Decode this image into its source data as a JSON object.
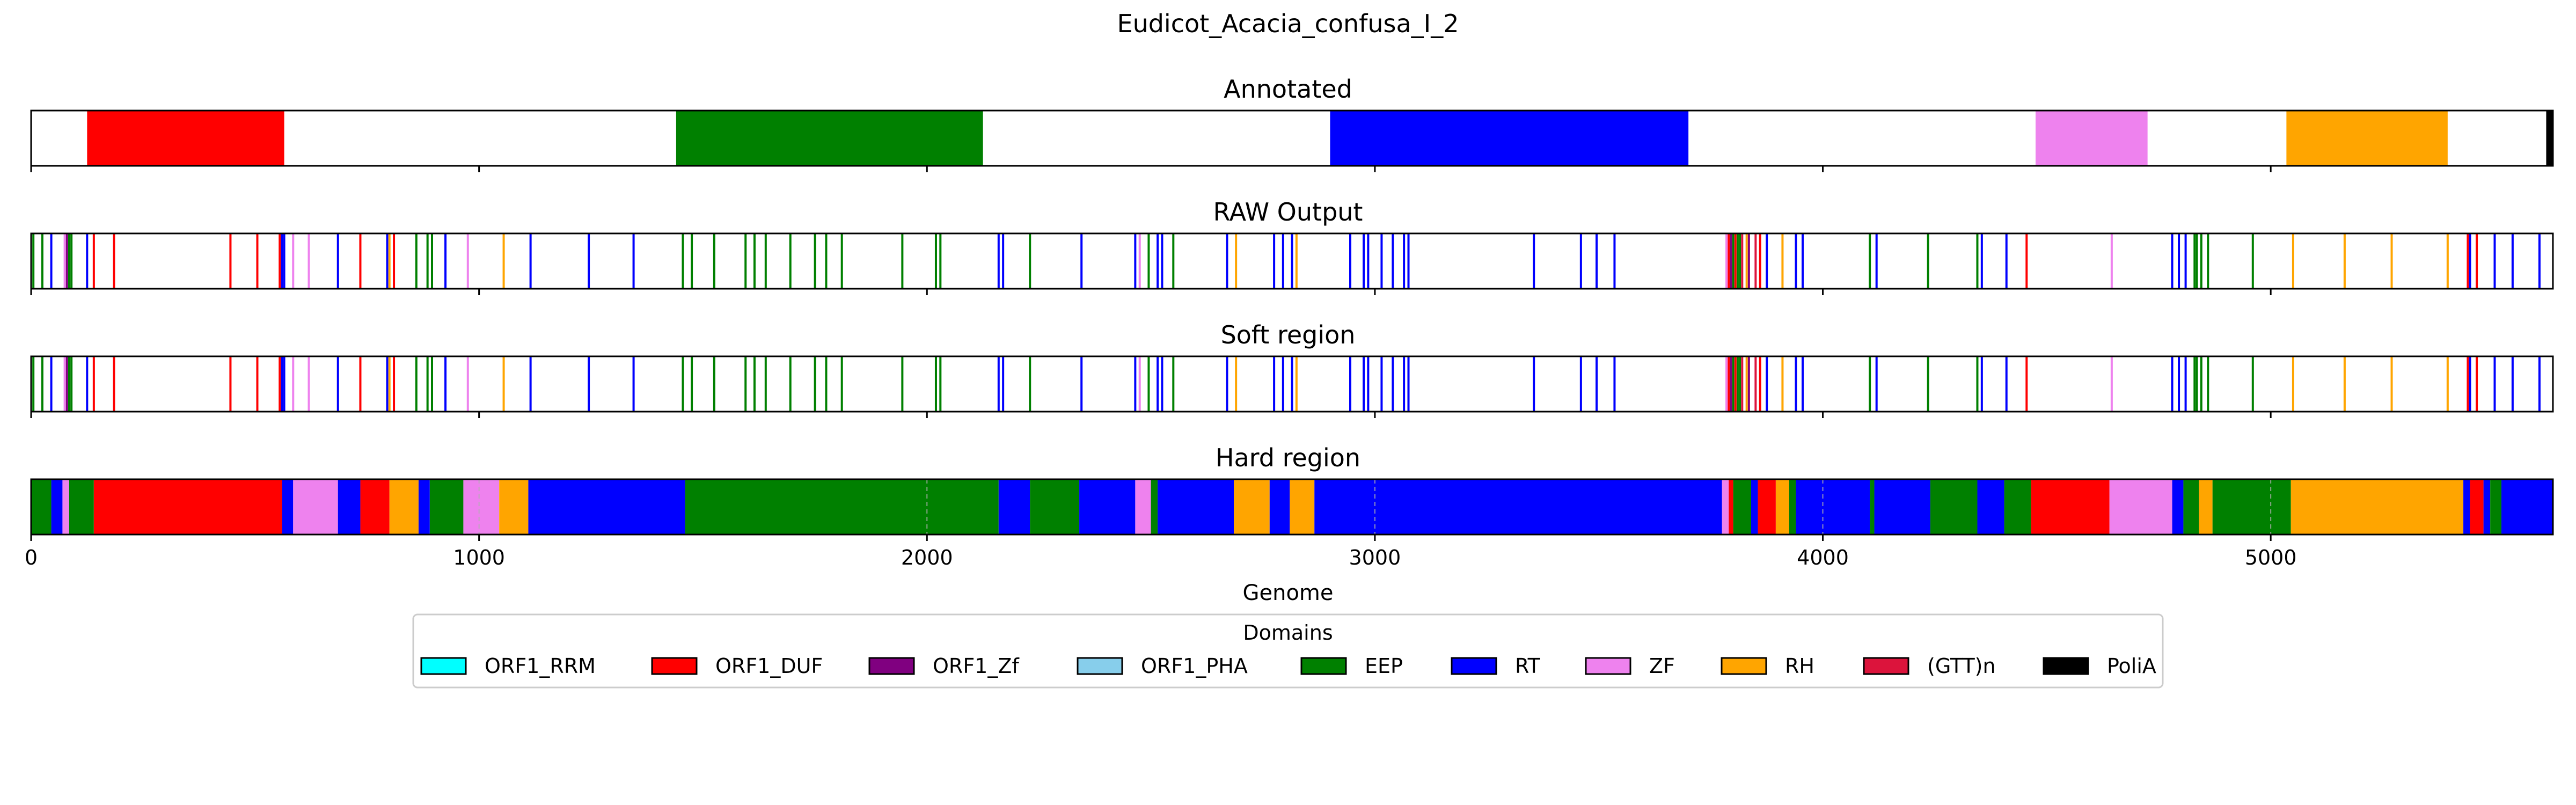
{
  "figure_title": "Eudicot_Acacia_confusa_I_2",
  "chart_data": {
    "type": "bar",
    "title": "Eudicot_Acacia_confusa_I_2",
    "xlabel": "Genome",
    "xlim": [
      0,
      5630
    ],
    "xticks": [
      0,
      1000,
      2000,
      3000,
      4000,
      5000
    ],
    "grid": "x dashed on Hard region panel",
    "legend": {
      "title": "Domains",
      "placement": "bottom-center",
      "entries": [
        {
          "name": "ORF1_RRM",
          "color": "#00ffff"
        },
        {
          "name": "ORF1_DUF",
          "color": "#ff0000"
        },
        {
          "name": "ORF1_Zf",
          "color": "#800080"
        },
        {
          "name": "ORF1_PHA",
          "color": "#87ceeb"
        },
        {
          "name": "EEP",
          "color": "#008000"
        },
        {
          "name": "RT",
          "color": "#0000ff"
        },
        {
          "name": "ZF",
          "color": "#ee82ee"
        },
        {
          "name": "RH",
          "color": "#ffa500"
        },
        {
          "name": "(GTT)n",
          "color": "#dc143c"
        },
        {
          "name": "PoliA",
          "color": "#000000"
        }
      ]
    },
    "panels": [
      {
        "title": "Annotated",
        "segments": [
          {
            "domain": "ORF1_DUF",
            "start": 125,
            "end": 565
          },
          {
            "domain": "EEP",
            "start": 1440,
            "end": 2125
          },
          {
            "domain": "RT",
            "start": 2900,
            "end": 3700
          },
          {
            "domain": "ZF",
            "start": 4475,
            "end": 4725
          },
          {
            "domain": "RH",
            "start": 5035,
            "end": 5395
          },
          {
            "domain": "PoliA",
            "start": 5615,
            "end": 5630
          }
        ]
      },
      {
        "title": "RAW Output",
        "marks": [
          {
            "domain": "EEP",
            "positions": [
              5,
              25,
              85,
              90,
              860,
              885,
              895,
              1455,
              1475,
              1525,
              1595,
              1615,
              1640,
              1695,
              1750,
              1775,
              1810,
              1945,
              2020,
              2030,
              2230,
              2495,
              2550,
              3800,
              3810,
              3815,
              4105,
              4235,
              4345,
              4830,
              4835,
              4845,
              4860,
              4960
            ]
          },
          {
            "domain": "RT",
            "positions": [
              45,
              125,
              560,
              565,
              685,
              795,
              925,
              1115,
              1245,
              1345,
              2160,
              2170,
              2345,
              2465,
              2515,
              2525,
              2670,
              2775,
              2795,
              2815,
              2945,
              2975,
              2985,
              3015,
              3040,
              3065,
              3075,
              3355,
              3460,
              3495,
              3535,
              3875,
              3940,
              3955,
              4120,
              4355,
              4410,
              4780,
              4795,
              4810,
              5445,
              5500,
              5540,
              5600
            ]
          },
          {
            "domain": "ORF1_DUF",
            "positions": [
              140,
              185,
              445,
              505,
              555,
              735,
              810,
              3790,
              3805,
              3860,
              4455,
              5440,
              5460
            ]
          },
          {
            "domain": "ZF",
            "positions": [
              75,
              585,
              620,
              975,
              2475,
              3785,
              4645
            ]
          },
          {
            "domain": "RH",
            "positions": [
              800,
              1055,
              2690,
              2825,
              3830,
              3910,
              5050,
              5165,
              5270,
              5395
            ]
          },
          {
            "domain": "ORF1_Zf",
            "positions": [
              80,
              3795,
              3835
            ]
          },
          {
            "domain": "(GTT)n",
            "positions": [
              3820,
              3850
            ]
          }
        ]
      },
      {
        "title": "Soft region",
        "marks": [
          {
            "domain": "EEP",
            "positions": [
              5,
              25,
              85,
              90,
              860,
              885,
              895,
              1455,
              1475,
              1525,
              1595,
              1615,
              1640,
              1695,
              1750,
              1775,
              1810,
              1945,
              2020,
              2030,
              2230,
              2495,
              2550,
              3800,
              3810,
              3815,
              4105,
              4235,
              4345,
              4830,
              4835,
              4845,
              4860,
              4960
            ]
          },
          {
            "domain": "RT",
            "positions": [
              45,
              125,
              560,
              565,
              685,
              795,
              925,
              1115,
              1245,
              1345,
              2160,
              2170,
              2345,
              2465,
              2515,
              2525,
              2670,
              2775,
              2795,
              2815,
              2945,
              2975,
              2985,
              3015,
              3040,
              3065,
              3075,
              3355,
              3460,
              3495,
              3535,
              3875,
              3940,
              3955,
              4120,
              4355,
              4410,
              4780,
              4795,
              4810,
              5445,
              5500,
              5540,
              5600
            ]
          },
          {
            "domain": "ORF1_DUF",
            "positions": [
              140,
              185,
              445,
              505,
              555,
              735,
              810,
              3790,
              3805,
              3860,
              4455,
              5440,
              5460
            ]
          },
          {
            "domain": "ZF",
            "positions": [
              75,
              585,
              620,
              975,
              2475,
              3785,
              4645
            ]
          },
          {
            "domain": "RH",
            "positions": [
              800,
              1055,
              2690,
              2825,
              3830,
              3910,
              5050,
              5165,
              5270,
              5395
            ]
          },
          {
            "domain": "ORF1_Zf",
            "positions": [
              80,
              3795,
              3835
            ]
          },
          {
            "domain": "(GTT)n",
            "positions": [
              3820,
              3850
            ]
          }
        ]
      },
      {
        "title": "Hard region",
        "segments": [
          {
            "domain": "EEP",
            "start": 0,
            "end": 45
          },
          {
            "domain": "RT",
            "start": 45,
            "end": 70
          },
          {
            "domain": "ZF",
            "start": 70,
            "end": 85
          },
          {
            "domain": "EEP",
            "start": 85,
            "end": 140
          },
          {
            "domain": "ORF1_DUF",
            "start": 140,
            "end": 560
          },
          {
            "domain": "RT",
            "start": 560,
            "end": 585
          },
          {
            "domain": "ZF",
            "start": 585,
            "end": 685
          },
          {
            "domain": "RT",
            "start": 685,
            "end": 735
          },
          {
            "domain": "ORF1_DUF",
            "start": 735,
            "end": 800
          },
          {
            "domain": "RH",
            "start": 800,
            "end": 865
          },
          {
            "domain": "RT",
            "start": 865,
            "end": 890
          },
          {
            "domain": "EEP",
            "start": 890,
            "end": 965
          },
          {
            "domain": "ZF",
            "start": 965,
            "end": 1045
          },
          {
            "domain": "RH",
            "start": 1045,
            "end": 1110
          },
          {
            "domain": "RT",
            "start": 1110,
            "end": 1460
          },
          {
            "domain": "EEP",
            "start": 1460,
            "end": 2160
          },
          {
            "domain": "RT",
            "start": 2160,
            "end": 2230
          },
          {
            "domain": "EEP",
            "start": 2230,
            "end": 2340
          },
          {
            "domain": "RT",
            "start": 2340,
            "end": 2465
          },
          {
            "domain": "ZF",
            "start": 2465,
            "end": 2500
          },
          {
            "domain": "EEP",
            "start": 2500,
            "end": 2515
          },
          {
            "domain": "RT",
            "start": 2515,
            "end": 2685
          },
          {
            "domain": "RH",
            "start": 2685,
            "end": 2765
          },
          {
            "domain": "RT",
            "start": 2765,
            "end": 2810
          },
          {
            "domain": "RH",
            "start": 2810,
            "end": 2865
          },
          {
            "domain": "RT",
            "start": 2865,
            "end": 3775
          },
          {
            "domain": "ZF",
            "start": 3775,
            "end": 3790
          },
          {
            "domain": "ORF1_DUF",
            "start": 3790,
            "end": 3800
          },
          {
            "domain": "EEP",
            "start": 3800,
            "end": 3840
          },
          {
            "domain": "RT",
            "start": 3840,
            "end": 3855
          },
          {
            "domain": "ORF1_DUF",
            "start": 3855,
            "end": 3895
          },
          {
            "domain": "RH",
            "start": 3895,
            "end": 3925
          },
          {
            "domain": "EEP",
            "start": 3925,
            "end": 3940
          },
          {
            "domain": "RT",
            "start": 3940,
            "end": 4105
          },
          {
            "domain": "EEP",
            "start": 4105,
            "end": 4115
          },
          {
            "domain": "RT",
            "start": 4115,
            "end": 4240
          },
          {
            "domain": "EEP",
            "start": 4240,
            "end": 4345
          },
          {
            "domain": "RT",
            "start": 4345,
            "end": 4405
          },
          {
            "domain": "EEP",
            "start": 4405,
            "end": 4465
          },
          {
            "domain": "ORF1_DUF",
            "start": 4465,
            "end": 4640
          },
          {
            "domain": "ZF",
            "start": 4640,
            "end": 4780
          },
          {
            "domain": "RT",
            "start": 4780,
            "end": 4805
          },
          {
            "domain": "EEP",
            "start": 4805,
            "end": 4840
          },
          {
            "domain": "RH",
            "start": 4840,
            "end": 4870
          },
          {
            "domain": "EEP",
            "start": 4870,
            "end": 5045
          },
          {
            "domain": "RH",
            "start": 5045,
            "end": 5430
          },
          {
            "domain": "RT",
            "start": 5430,
            "end": 5445
          },
          {
            "domain": "ORF1_DUF",
            "start": 5445,
            "end": 5475
          },
          {
            "domain": "RT",
            "start": 5475,
            "end": 5490
          },
          {
            "domain": "EEP",
            "start": 5490,
            "end": 5515
          },
          {
            "domain": "RT",
            "start": 5515,
            "end": 5630
          }
        ]
      }
    ]
  }
}
